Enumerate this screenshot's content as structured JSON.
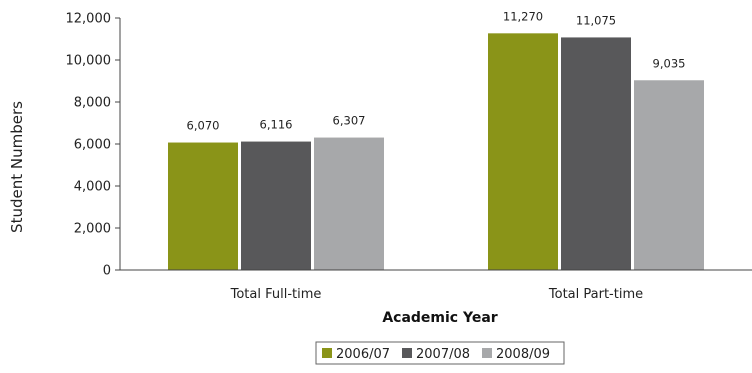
{
  "chart_data": {
    "type": "bar",
    "title": "",
    "xlabel": "Academic Year",
    "ylabel": "Student Numbers",
    "ylim": [
      0,
      12000
    ],
    "yticks": [
      0,
      2000,
      4000,
      6000,
      8000,
      10000,
      12000
    ],
    "ytick_labels": [
      "0",
      "2,000",
      "4,000",
      "6,000",
      "8,000",
      "10,000",
      "12,000"
    ],
    "categories": [
      "Total Full-time",
      "Total Part-time"
    ],
    "series": [
      {
        "name": "2006/07",
        "color": "#8a9418",
        "values": [
          6070,
          11270
        ],
        "labels": [
          "6,070",
          "11,270"
        ]
      },
      {
        "name": "2007/08",
        "color": "#58585a",
        "values": [
          6116,
          11075
        ],
        "labels": [
          "6,116",
          "11,075"
        ]
      },
      {
        "name": "2008/09",
        "color": "#a7a8aa",
        "values": [
          6307,
          9035
        ],
        "labels": [
          "6,307",
          "9,035"
        ]
      }
    ],
    "grid": false,
    "legend": "bottom"
  }
}
